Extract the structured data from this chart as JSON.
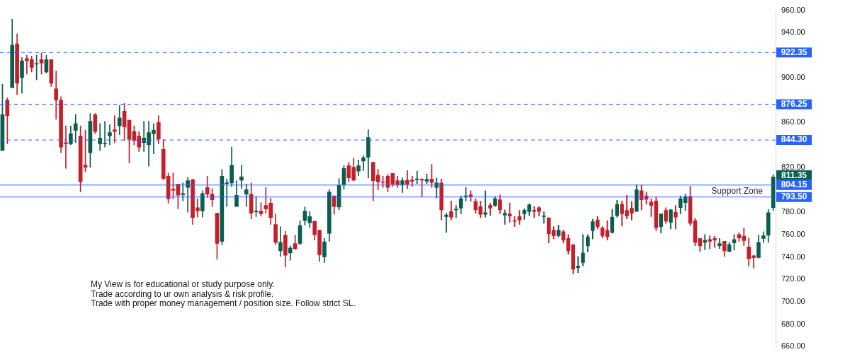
{
  "chart_data": {
    "type": "candlestick",
    "categories": [
      null,
      null,
      null,
      null,
      null,
      null,
      null,
      null,
      null,
      null,
      null,
      null,
      null,
      null,
      null,
      null,
      null,
      null,
      null,
      null,
      null,
      null,
      null,
      null,
      null,
      null,
      null,
      null,
      null,
      null,
      null,
      null,
      null,
      null,
      null,
      null,
      null,
      null,
      null,
      null,
      null,
      null,
      null,
      null,
      null,
      null,
      null,
      null,
      null,
      null,
      null,
      null,
      null,
      null,
      null,
      null,
      null,
      null,
      null,
      null,
      null,
      null,
      null,
      null,
      null,
      null,
      null,
      null,
      null,
      null,
      null,
      null,
      null,
      null,
      null,
      null,
      null,
      null,
      null,
      null,
      null,
      null,
      null,
      null,
      null,
      null,
      null,
      null,
      null,
      null,
      null,
      null,
      null,
      null,
      null,
      null,
      null,
      null,
      null,
      null,
      null,
      null,
      null,
      null,
      null,
      null,
      null,
      null,
      null,
      null,
      null,
      null,
      null,
      null,
      null,
      null,
      null,
      null,
      null,
      null,
      null,
      null,
      null,
      null,
      null,
      null,
      null,
      null,
      null,
      null,
      null,
      null,
      null,
      null,
      null,
      null,
      null,
      null,
      null,
      null,
      null,
      null,
      null,
      null,
      null,
      null,
      null,
      null,
      null,
      null,
      null,
      null,
      null,
      null,
      null,
      null,
      null,
      null,
      null
    ],
    "ohlc": [
      [
        835,
        894,
        835,
        867
      ],
      [
        880,
        882,
        841,
        866
      ],
      [
        891,
        952,
        891,
        929
      ],
      [
        930,
        939,
        885,
        895
      ],
      [
        900,
        918,
        886,
        915
      ],
      [
        917,
        920,
        903,
        915
      ],
      [
        916,
        919,
        905,
        909
      ],
      [
        912,
        920,
        898,
        912.5
      ],
      [
        916,
        922,
        903,
        913
      ],
      [
        905,
        920,
        904,
        916
      ],
      [
        916,
        916,
        892,
        895
      ],
      [
        890,
        906,
        863,
        880
      ],
      [
        880,
        883,
        833,
        838
      ],
      [
        842,
        857,
        819,
        841
      ],
      [
        841,
        857,
        840,
        850
      ],
      [
        853,
        867,
        842,
        859
      ],
      [
        848,
        857,
        798,
        807
      ],
      [
        822,
        853,
        816,
        820
      ],
      [
        833,
        868,
        820,
        861
      ],
      [
        867,
        868,
        850,
        852
      ],
      [
        841,
        859,
        835,
        846
      ],
      [
        841,
        861,
        838,
        841.5
      ],
      [
        848,
        858,
        840,
        851
      ],
      [
        853.5,
        866,
        842,
        852
      ],
      [
        857,
        875,
        849,
        864
      ],
      [
        870,
        877,
        844,
        856
      ],
      [
        862,
        862,
        824,
        845
      ],
      [
        852,
        857,
        840,
        844
      ],
      [
        848,
        852,
        834,
        838
      ],
      [
        842,
        861,
        834,
        846
      ],
      [
        840,
        861,
        821,
        851
      ],
      [
        850,
        859,
        832,
        853
      ],
      [
        860,
        866,
        841,
        845
      ],
      [
        836,
        845,
        809,
        810
      ],
      [
        812,
        815,
        788,
        792
      ],
      [
        800.5,
        815,
        792,
        799.5
      ],
      [
        805,
        805,
        783,
        795
      ],
      [
        795.5,
        806,
        790,
        796.5
      ],
      [
        802,
        811,
        780,
        808
      ],
      [
        809,
        809.5,
        769,
        775
      ],
      [
        784,
        792,
        775.5,
        781
      ],
      [
        781,
        799,
        775.5,
        796.5
      ],
      [
        802,
        812,
        793,
        796
      ],
      [
        796,
        801,
        785,
        791
      ],
      [
        779,
        779,
        738,
        752
      ],
      [
        754,
        818,
        751,
        812
      ],
      [
        805.5,
        809.5,
        785,
        806
      ],
      [
        806,
        838,
        803,
        822
      ],
      [
        785,
        808,
        785,
        795
      ],
      [
        808.5,
        822,
        801,
        811.5
      ],
      [
        796,
        805,
        785,
        800
      ],
      [
        796,
        806,
        774,
        779
      ],
      [
        780.3,
        794,
        776,
        781
      ],
      [
        781,
        788.5,
        776.5,
        778.5
      ],
      [
        786,
        802,
        779,
        783
      ],
      [
        788,
        792.5,
        769,
        775
      ],
      [
        769,
        778.5,
        751,
        753
      ],
      [
        745.5,
        767,
        740.5,
        753
      ],
      [
        759.5,
        763,
        731,
        741.5
      ],
      [
        743.5,
        750,
        737,
        748
      ],
      [
        752,
        759.5,
        746.5,
        747.5
      ],
      [
        752,
        772.5,
        751,
        768
      ],
      [
        772.5,
        784.5,
        768.5,
        781
      ],
      [
        770.5,
        780.5,
        766,
        776
      ],
      [
        772,
        772,
        755,
        760
      ],
      [
        764,
        764,
        736,
        742
      ],
      [
        740,
        756.5,
        735,
        753.5
      ],
      [
        761,
        800,
        754,
        798
      ],
      [
        794.5,
        794.5,
        778,
        785
      ],
      [
        784.5,
        810,
        782,
        804
      ],
      [
        804.5,
        821.5,
        800.5,
        819
      ],
      [
        821.5,
        824.5,
        807,
        810.5
      ],
      [
        820,
        828,
        808,
        808.5
      ],
      [
        816.5,
        826.5,
        812.5,
        821.5
      ],
      [
        825.5,
        830.5,
        817,
        828.5
      ],
      [
        829,
        853.5,
        810.5,
        846.5
      ],
      [
        824.5,
        824.5,
        790,
        808
      ],
      [
        813,
        818,
        800,
        807
      ],
      [
        807,
        812,
        802,
        806.4
      ],
      [
        812,
        813.5,
        798,
        802
      ],
      [
        814.5,
        814.5,
        803,
        805
      ],
      [
        808,
        812,
        802,
        804.5
      ],
      [
        804.5,
        810.5,
        797.5,
        808
      ],
      [
        808.5,
        817,
        801,
        805
      ],
      [
        808.5,
        812,
        803,
        807.5
      ],
      [
        809,
        816.5,
        805.5,
        809.5
      ],
      [
        809.3,
        810,
        794,
        808.5
      ],
      [
        807.5,
        814,
        805.5,
        809.3
      ],
      [
        809.5,
        822.5,
        802,
        806.5
      ],
      [
        802,
        810.5,
        792.5,
        806
      ],
      [
        806,
        809.5,
        773,
        782
      ],
      [
        776,
        779,
        762,
        777.5
      ],
      [
        780.5,
        790,
        773,
        775.5
      ],
      [
        782,
        786,
        775,
        782.5
      ],
      [
        783.5,
        794.5,
        778.5,
        792
      ],
      [
        793.5,
        802,
        790,
        794.5
      ],
      [
        795.5,
        799,
        789.5,
        794
      ],
      [
        789.5,
        792,
        779,
        782
      ],
      [
        785,
        790,
        775,
        778
      ],
      [
        778,
        799,
        775.5,
        779.5
      ],
      [
        786,
        788,
        777,
        783.5
      ],
      [
        786,
        794,
        785,
        792
      ],
      [
        791,
        795.5,
        778.5,
        782
      ],
      [
        777.5,
        782,
        769,
        779
      ],
      [
        778.5,
        788,
        771,
        776.5
      ],
      [
        772.5,
        776,
        767,
        771.8
      ],
      [
        776,
        781.5,
        769,
        773
      ],
      [
        778.5,
        783,
        773.5,
        781.5
      ],
      [
        780.5,
        787.5,
        777,
        786.5
      ],
      [
        781.5,
        785,
        775,
        780.5
      ],
      [
        784,
        785,
        776.5,
        780.5
      ],
      [
        776,
        780.5,
        770,
        776.7
      ],
      [
        775,
        775,
        752.5,
        760.5
      ],
      [
        764,
        767,
        756,
        759
      ],
      [
        759,
        768.5,
        758,
        764
      ],
      [
        762.5,
        764,
        752.5,
        755
      ],
      [
        756.5,
        760,
        742.5,
        745.5
      ],
      [
        751,
        751,
        725,
        729
      ],
      [
        730.5,
        740.5,
        726,
        732
      ],
      [
        735,
        760,
        732,
        743.5
      ],
      [
        750,
        760,
        744.5,
        758
      ],
      [
        763.5,
        773.5,
        756,
        771.5
      ],
      [
        773,
        776,
        765,
        767
      ],
      [
        766,
        767,
        757,
        759
      ],
      [
        764,
        772.5,
        755,
        758
      ],
      [
        762,
        782.5,
        761,
        775.5
      ],
      [
        777,
        790.5,
        775.5,
        787
      ],
      [
        787,
        790,
        767.5,
        778.5
      ],
      [
        781.5,
        795,
        774,
        776.5
      ],
      [
        783.5,
        789.5,
        773,
        779
      ],
      [
        780.5,
        804.5,
        780.5,
        800
      ],
      [
        799,
        804.5,
        782,
        791
      ],
      [
        794.5,
        798,
        787,
        791.5
      ],
      [
        789,
        792,
        776,
        786
      ],
      [
        790,
        793.5,
        763.5,
        766
      ],
      [
        767,
        778.5,
        761.5,
        778.5
      ],
      [
        781.5,
        784,
        770,
        772
      ],
      [
        771,
        782.5,
        765,
        782
      ],
      [
        780,
        786,
        765,
        775.5
      ],
      [
        784,
        794.5,
        778.5,
        792
      ],
      [
        788.5,
        796,
        781.5,
        794
      ],
      [
        794,
        803,
        768,
        770
      ],
      [
        772.5,
        774.5,
        750,
        753
      ],
      [
        756.5,
        756.5,
        745,
        750
      ],
      [
        753,
        760,
        746.5,
        755
      ],
      [
        755.5,
        759,
        747.5,
        754
      ],
      [
        756.5,
        758.5,
        748.5,
        755
      ],
      [
        750,
        756.5,
        747.5,
        752
      ],
      [
        754,
        754,
        740.5,
        745.5
      ],
      [
        745,
        753,
        744.5,
        751
      ],
      [
        752.5,
        760,
        746,
        755.5
      ],
      [
        760,
        761.5,
        754,
        757
      ],
      [
        758.5,
        766,
        750,
        754.5
      ],
      [
        749,
        757,
        732,
        738.5
      ],
      [
        741,
        741.5,
        730,
        739.5
      ],
      [
        739.5,
        759.5,
        739,
        753
      ],
      [
        756.5,
        762.5,
        753,
        759
      ],
      [
        759.5,
        782.5,
        753,
        779.5
      ],
      [
        784,
        813.5,
        781.5,
        811.35
      ]
    ],
    "ylim": [
      660,
      960
    ],
    "yticks": [
      {
        "value": 660,
        "label": "660.00"
      },
      {
        "value": 680,
        "label": "680.00"
      },
      {
        "value": 700,
        "label": "700.00"
      },
      {
        "value": 720,
        "label": "720.00"
      },
      {
        "value": 740,
        "label": "740.00"
      },
      {
        "value": 760,
        "label": "760.00"
      },
      {
        "value": 780,
        "label": "780.00"
      },
      {
        "value": 820,
        "label": "820.00"
      },
      {
        "value": 860,
        "label": "860.00"
      },
      {
        "value": 900,
        "label": "900.00"
      },
      {
        "value": 940,
        "label": "940.00"
      },
      {
        "value": 960,
        "label": "960.00"
      }
    ],
    "tick_labels": "y",
    "ref_lines": [
      {
        "axis": "y",
        "value": 922.35,
        "label": "922.35",
        "color": "#2962ff",
        "line_style": "dashed"
      },
      {
        "axis": "y",
        "value": 876.25,
        "label": "876.25",
        "color": "#2962ff",
        "line_style": "dashed"
      },
      {
        "axis": "y",
        "value": 844.3,
        "label": "844.30",
        "color": "#2962ff",
        "line_style": "dashed"
      },
      {
        "axis": "y",
        "value": 804.15,
        "label": "804.15",
        "color": "#2962ff",
        "line_style": "solid"
      },
      {
        "axis": "y",
        "value": 793.5,
        "label": "793.50",
        "color": "#2962ff",
        "line_style": "solid"
      }
    ],
    "annotations": [
      {
        "text": "Support Zone",
        "y": 804.15
      },
      "811.35",
      "My View is for educational or study purpose only.",
      "Trade according to ur own analysis & risk profile.",
      "Trade with proper money management / position size. Follow strict SL."
    ]
  }
}
